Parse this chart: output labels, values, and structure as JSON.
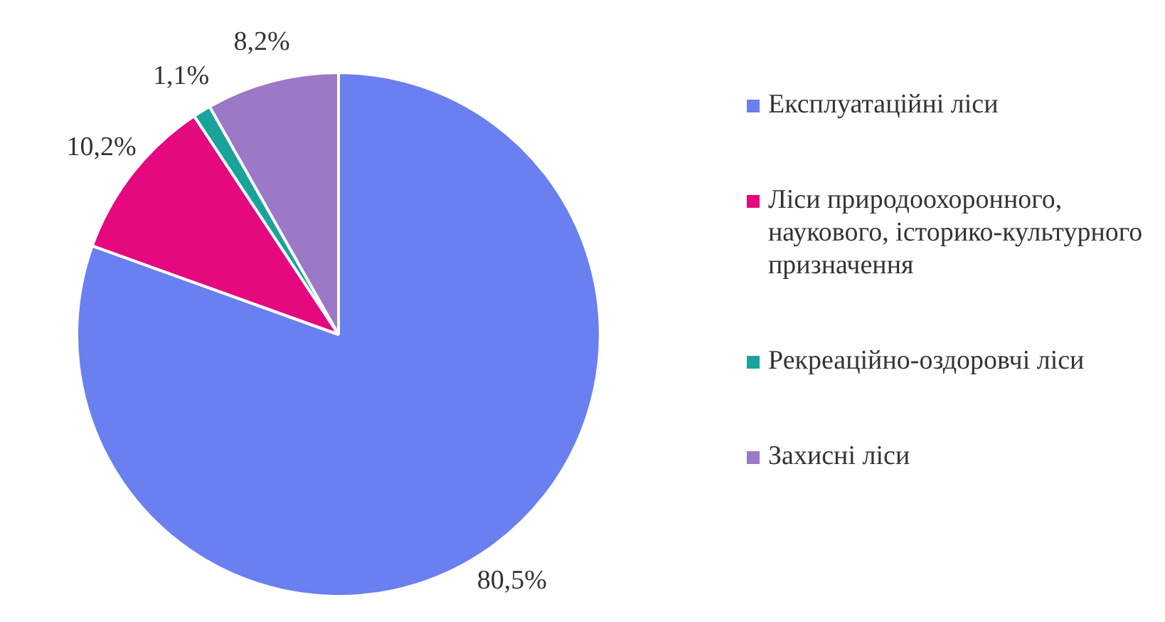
{
  "chart_data": {
    "type": "pie",
    "categories": [
      "Експлуатаційні ліси",
      "Ліси природоохоронного, наукового, історико-культурного призначення",
      "Рекреаційно-оздоровчі ліси",
      "Захисні ліси"
    ],
    "values": [
      80.5,
      10.2,
      1.1,
      8.2
    ],
    "colors": [
      "#6a7ff0",
      "#e5087e",
      "#1aa39a",
      "#9b79c6"
    ],
    "value_labels": [
      "80,5%",
      "10,2%",
      "1,1%",
      "8,2%"
    ],
    "legend": "right"
  }
}
